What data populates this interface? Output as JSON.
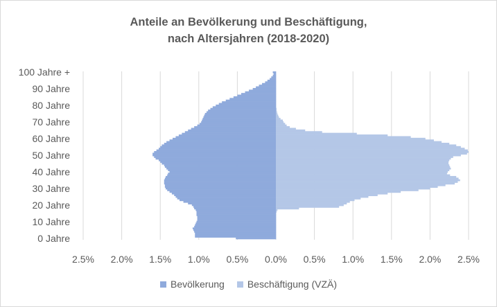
{
  "chart_data": {
    "type": "bar",
    "orientation": "horizontal",
    "layout": "population-pyramid",
    "title": "Anteile an Bevölkerung und Beschäftigung,",
    "subtitle": "nach Altersjahren (2018-2020)",
    "y_tick_labels": [
      "0 Jahre",
      "10 Jahre",
      "20 Jahre",
      "30 Jahre",
      "40 Jahre",
      "50 Jahre",
      "60 Jahre",
      "70 Jahre",
      "80 Jahre",
      "90 Jahre",
      "100 Jahre +"
    ],
    "x_tick_labels": [
      "2.5%",
      "2.0%",
      "1.5%",
      "1.0%",
      "0.5%",
      "0.0%",
      "0.5%",
      "1.0%",
      "1.5%",
      "2.0%",
      "2.5%"
    ],
    "xlim": [
      -2.5,
      2.5
    ],
    "ylim": [
      0,
      100
    ],
    "grid": true,
    "legend_position": "bottom",
    "series": [
      {
        "name": "Bevölkerung",
        "side": "left",
        "color": "#8faadc",
        "values": [
          0.52,
          1.05,
          1.05,
          1.05,
          1.06,
          1.07,
          1.08,
          1.06,
          1.05,
          1.04,
          1.03,
          1.02,
          1.02,
          1.02,
          1.03,
          1.03,
          1.03,
          1.04,
          1.06,
          1.07,
          1.09,
          1.14,
          1.2,
          1.25,
          1.28,
          1.3,
          1.32,
          1.35,
          1.38,
          1.41,
          1.43,
          1.44,
          1.44,
          1.45,
          1.45,
          1.45,
          1.44,
          1.43,
          1.41,
          1.4,
          1.38,
          1.4,
          1.42,
          1.44,
          1.45,
          1.48,
          1.5,
          1.52,
          1.56,
          1.58,
          1.6,
          1.6,
          1.58,
          1.55,
          1.52,
          1.5,
          1.48,
          1.45,
          1.42,
          1.38,
          1.34,
          1.3,
          1.26,
          1.22,
          1.18,
          1.14,
          1.1,
          1.06,
          1.02,
          0.99,
          0.97,
          0.96,
          0.95,
          0.94,
          0.93,
          0.92,
          0.9,
          0.88,
          0.85,
          0.82,
          0.78,
          0.74,
          0.7,
          0.65,
          0.6,
          0.55,
          0.5,
          0.45,
          0.4,
          0.35,
          0.3,
          0.26,
          0.22,
          0.18,
          0.14,
          0.11,
          0.08,
          0.06,
          0.04,
          0.03,
          0.04
        ]
      },
      {
        "name": "Beschäftigung (VZÄ)",
        "side": "right",
        "color": "#b4c7e7",
        "values": [
          0.005,
          0.005,
          0.005,
          0.005,
          0.005,
          0.005,
          0.005,
          0.005,
          0.005,
          0.005,
          0.005,
          0.005,
          0.005,
          0.005,
          0.005,
          0.005,
          0.01,
          0.02,
          0.3,
          0.82,
          0.88,
          0.92,
          0.96,
          1.02,
          1.1,
          1.2,
          1.32,
          1.45,
          1.62,
          1.85,
          2.0,
          2.1,
          2.2,
          2.32,
          2.36,
          2.39,
          2.37,
          2.34,
          2.26,
          2.22,
          2.23,
          2.25,
          2.27,
          2.26,
          2.25,
          2.24,
          2.24,
          2.25,
          2.27,
          2.3,
          2.4,
          2.48,
          2.5,
          2.49,
          2.45,
          2.4,
          2.34,
          2.25,
          2.15,
          2.05,
          1.94,
          1.75,
          1.45,
          1.05,
          0.6,
          0.38,
          0.26,
          0.18,
          0.14,
          0.12,
          0.1,
          0.09,
          0.06,
          0.04,
          0.03,
          0.02,
          0.015,
          0.01,
          0.01,
          0.005,
          0.005,
          0.005,
          0.005,
          0.005,
          0.005,
          0.005,
          0.005,
          0.005,
          0.005,
          0.005,
          0.005,
          0.005,
          0.005,
          0.005,
          0.005,
          0.005,
          0.005,
          0.005,
          0.005,
          0.005,
          0.005
        ]
      }
    ]
  }
}
